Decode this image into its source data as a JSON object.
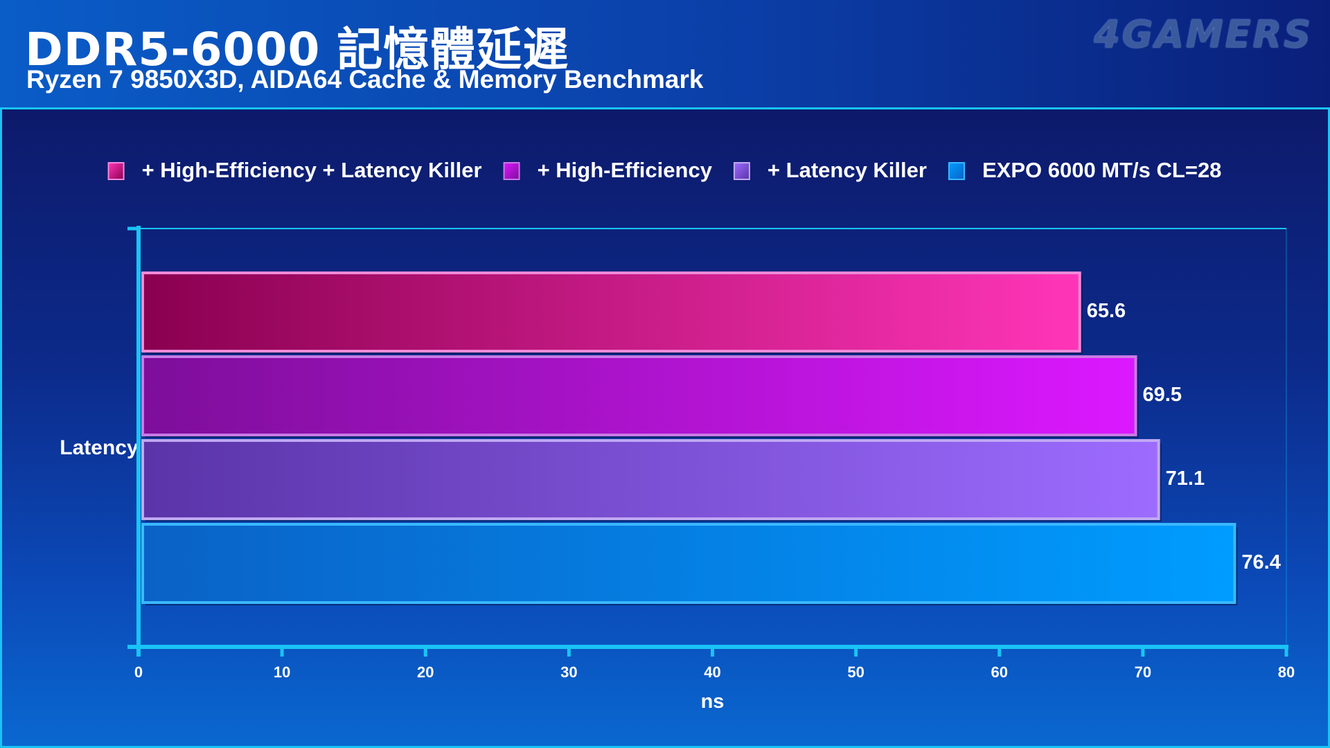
{
  "header": {
    "title": "DDR5-6000 記憶體延遲",
    "subtitle": "Ryzen 7 9850X3D, AIDA64 Cache & Memory Benchmark",
    "logo": "4GAMERS"
  },
  "chart_data": {
    "type": "bar",
    "orientation": "horizontal",
    "title": "DDR5-6000 記憶體延遲",
    "subtitle": "Ryzen 7 9850X3D, AIDA64 Cache & Memory Benchmark",
    "categories": [
      "Latency"
    ],
    "xlabel": "ns",
    "ylabel": "",
    "xlim": [
      0,
      80
    ],
    "xticks": [
      0,
      10,
      20,
      30,
      40,
      50,
      60,
      70,
      80
    ],
    "legend_position": "top",
    "series": [
      {
        "name": "+ High-Efficiency + Latency Killer",
        "values": [
          65.6
        ],
        "color_start": "#8a0050",
        "color_end": "#ff35b8",
        "border": "#f08ad8"
      },
      {
        "name": "+ High-Efficiency",
        "values": [
          69.5
        ],
        "color_start": "#7d0e9a",
        "color_end": "#dc18ff",
        "border": "#c97ae6"
      },
      {
        "name": "+ Latency Killer",
        "values": [
          71.1
        ],
        "color_start": "#5a34a8",
        "color_end": "#9d6cff",
        "border": "#c0a8f2"
      },
      {
        "name": "EXPO 6000 MT/s CL=28",
        "values": [
          76.4
        ],
        "color_start": "#0a62c6",
        "color_end": "#009cff",
        "border": "#3ab8ff"
      }
    ]
  }
}
